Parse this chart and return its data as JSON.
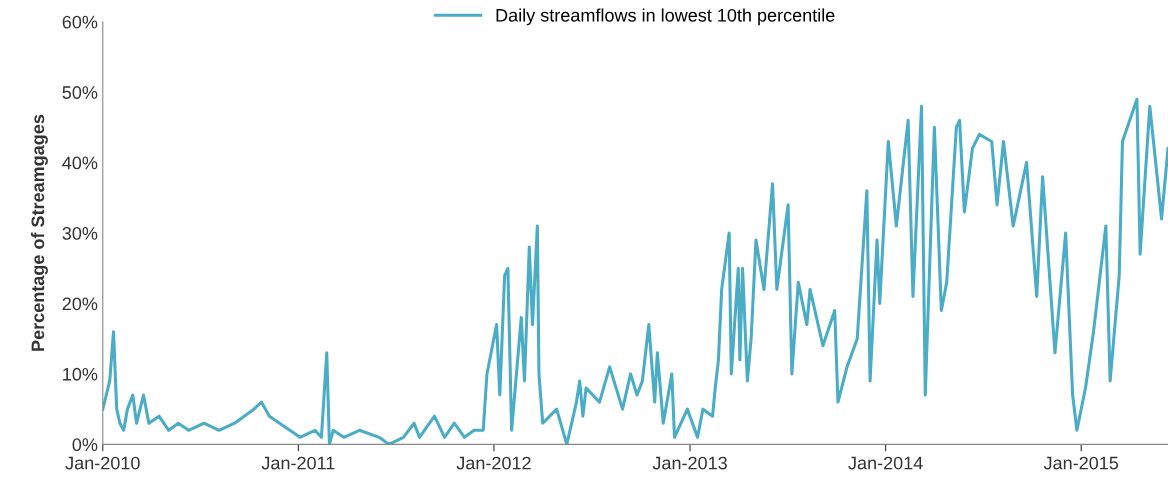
{
  "chart_data": {
    "type": "line",
    "ylabel": "Percentage of Streamgages",
    "legend": "top",
    "grid": false,
    "marker": "none",
    "line_style": "solid",
    "xlim": [
      "2010-01-01",
      "2015-06-12"
    ],
    "xticks": [
      {
        "value": "2010-01-01",
        "label": "Jan-2010"
      },
      {
        "value": "2011-01-01",
        "label": "Jan-2011"
      },
      {
        "value": "2012-01-01",
        "label": "Jan-2012"
      },
      {
        "value": "2013-01-01",
        "label": "Jan-2013"
      },
      {
        "value": "2014-01-01",
        "label": "Jan-2014"
      },
      {
        "value": "2015-01-01",
        "label": "Jan-2015"
      }
    ],
    "ylim": [
      0,
      60
    ],
    "yticks": [
      {
        "value": 0,
        "label": "0%"
      },
      {
        "value": 10,
        "label": "10%"
      },
      {
        "value": 20,
        "label": "20%"
      },
      {
        "value": 30,
        "label": "30%"
      },
      {
        "value": 40,
        "label": "40%"
      },
      {
        "value": 50,
        "label": "50%"
      },
      {
        "value": 60,
        "label": "60%"
      }
    ],
    "series": [
      {
        "name": "Daily streamflows in lowest 10th percentile",
        "color": "#4bacc6",
        "x": [
          "2010-01-01",
          "2010-01-14",
          "2010-01-21",
          "2010-01-27",
          "2010-02-02",
          "2010-02-09",
          "2010-02-16",
          "2010-02-26",
          "2010-03-05",
          "2010-03-18",
          "2010-03-28",
          "2010-04-16",
          "2010-05-04",
          "2010-05-22",
          "2010-06-10",
          "2010-07-09",
          "2010-08-06",
          "2010-09-04",
          "2010-10-10",
          "2010-10-24",
          "2010-11-08",
          "2010-11-27",
          "2010-12-16",
          "2011-01-04",
          "2011-02-01",
          "2011-02-13",
          "2011-02-23",
          "2011-02-28",
          "2011-03-07",
          "2011-03-27",
          "2011-04-25",
          "2011-06-01",
          "2011-06-19",
          "2011-07-16",
          "2011-08-05",
          "2011-08-15",
          "2011-09-12",
          "2011-10-01",
          "2011-10-19",
          "2011-11-07",
          "2011-11-25",
          "2011-12-12",
          "2011-12-19",
          "2012-01-06",
          "2012-01-12",
          "2012-01-21",
          "2012-01-27",
          "2012-02-03",
          "2012-02-21",
          "2012-02-27",
          "2012-03-07",
          "2012-03-13",
          "2012-03-22",
          "2012-03-25",
          "2012-04-01",
          "2012-04-27",
          "2012-05-16",
          "2012-06-03",
          "2012-06-09",
          "2012-06-15",
          "2012-06-21",
          "2012-07-16",
          "2012-08-04",
          "2012-08-28",
          "2012-09-12",
          "2012-09-24",
          "2012-10-04",
          "2012-10-16",
          "2012-10-27",
          "2012-11-01",
          "2012-11-12",
          "2012-11-28",
          "2012-12-03",
          "2012-12-27",
          "2013-01-15",
          "2013-01-25",
          "2013-02-12",
          "2013-02-17",
          "2013-02-23",
          "2013-03-01",
          "2013-03-15",
          "2013-03-19",
          "2013-04-01",
          "2013-04-04",
          "2013-04-09",
          "2013-04-18",
          "2013-04-25",
          "2013-05-04",
          "2013-05-19",
          "2013-06-04",
          "2013-06-12",
          "2013-07-03",
          "2013-07-10",
          "2013-07-22",
          "2013-08-07",
          "2013-08-13",
          "2013-09-06",
          "2013-09-28",
          "2013-10-04",
          "2013-10-21",
          "2013-11-09",
          "2013-11-27",
          "2013-12-03",
          "2013-12-16",
          "2013-12-21",
          "2014-01-06",
          "2014-01-21",
          "2014-02-12",
          "2014-02-21",
          "2014-03-09",
          "2014-03-16",
          "2014-04-02",
          "2014-04-15",
          "2014-04-25",
          "2014-05-13",
          "2014-05-19",
          "2014-05-28",
          "2014-06-12",
          "2014-06-25",
          "2014-07-18",
          "2014-07-28",
          "2014-08-09",
          "2014-08-27",
          "2014-09-21",
          "2014-10-10",
          "2014-10-21",
          "2014-11-13",
          "2014-12-03",
          "2014-12-16",
          "2014-12-24",
          "2015-01-09",
          "2015-01-24",
          "2015-02-16",
          "2015-02-24",
          "2015-03-13",
          "2015-03-19",
          "2015-04-15",
          "2015-04-21",
          "2015-05-09",
          "2015-05-31",
          "2015-06-12"
        ],
        "values": [
          5,
          9,
          16,
          5,
          3,
          2,
          5,
          7,
          3,
          7,
          3,
          4,
          2,
          3,
          2,
          3,
          2,
          3,
          5,
          6,
          4,
          3,
          2,
          1,
          2,
          1,
          13,
          0,
          2,
          1,
          2,
          1,
          0,
          1,
          3,
          1,
          4,
          1,
          3,
          1,
          2,
          2,
          10,
          17,
          7,
          24,
          25,
          2,
          18,
          9,
          28,
          17,
          31,
          10,
          3,
          5,
          0,
          6,
          9,
          4,
          8,
          6,
          11,
          5,
          10,
          7,
          9,
          17,
          6,
          13,
          3,
          10,
          1,
          5,
          1,
          5,
          4,
          8,
          12,
          22,
          30,
          10,
          25,
          12,
          25,
          9,
          15,
          29,
          22,
          37,
          22,
          34,
          10,
          23,
          17,
          22,
          14,
          19,
          6,
          11,
          15,
          36,
          9,
          29,
          20,
          43,
          31,
          46,
          21,
          48,
          7,
          45,
          19,
          23,
          45,
          46,
          33,
          42,
          44,
          43,
          34,
          43,
          31,
          40,
          21,
          38,
          13,
          30,
          7,
          2,
          8,
          16,
          31,
          9,
          24,
          43,
          49,
          27,
          48,
          32,
          42
        ]
      }
    ]
  }
}
